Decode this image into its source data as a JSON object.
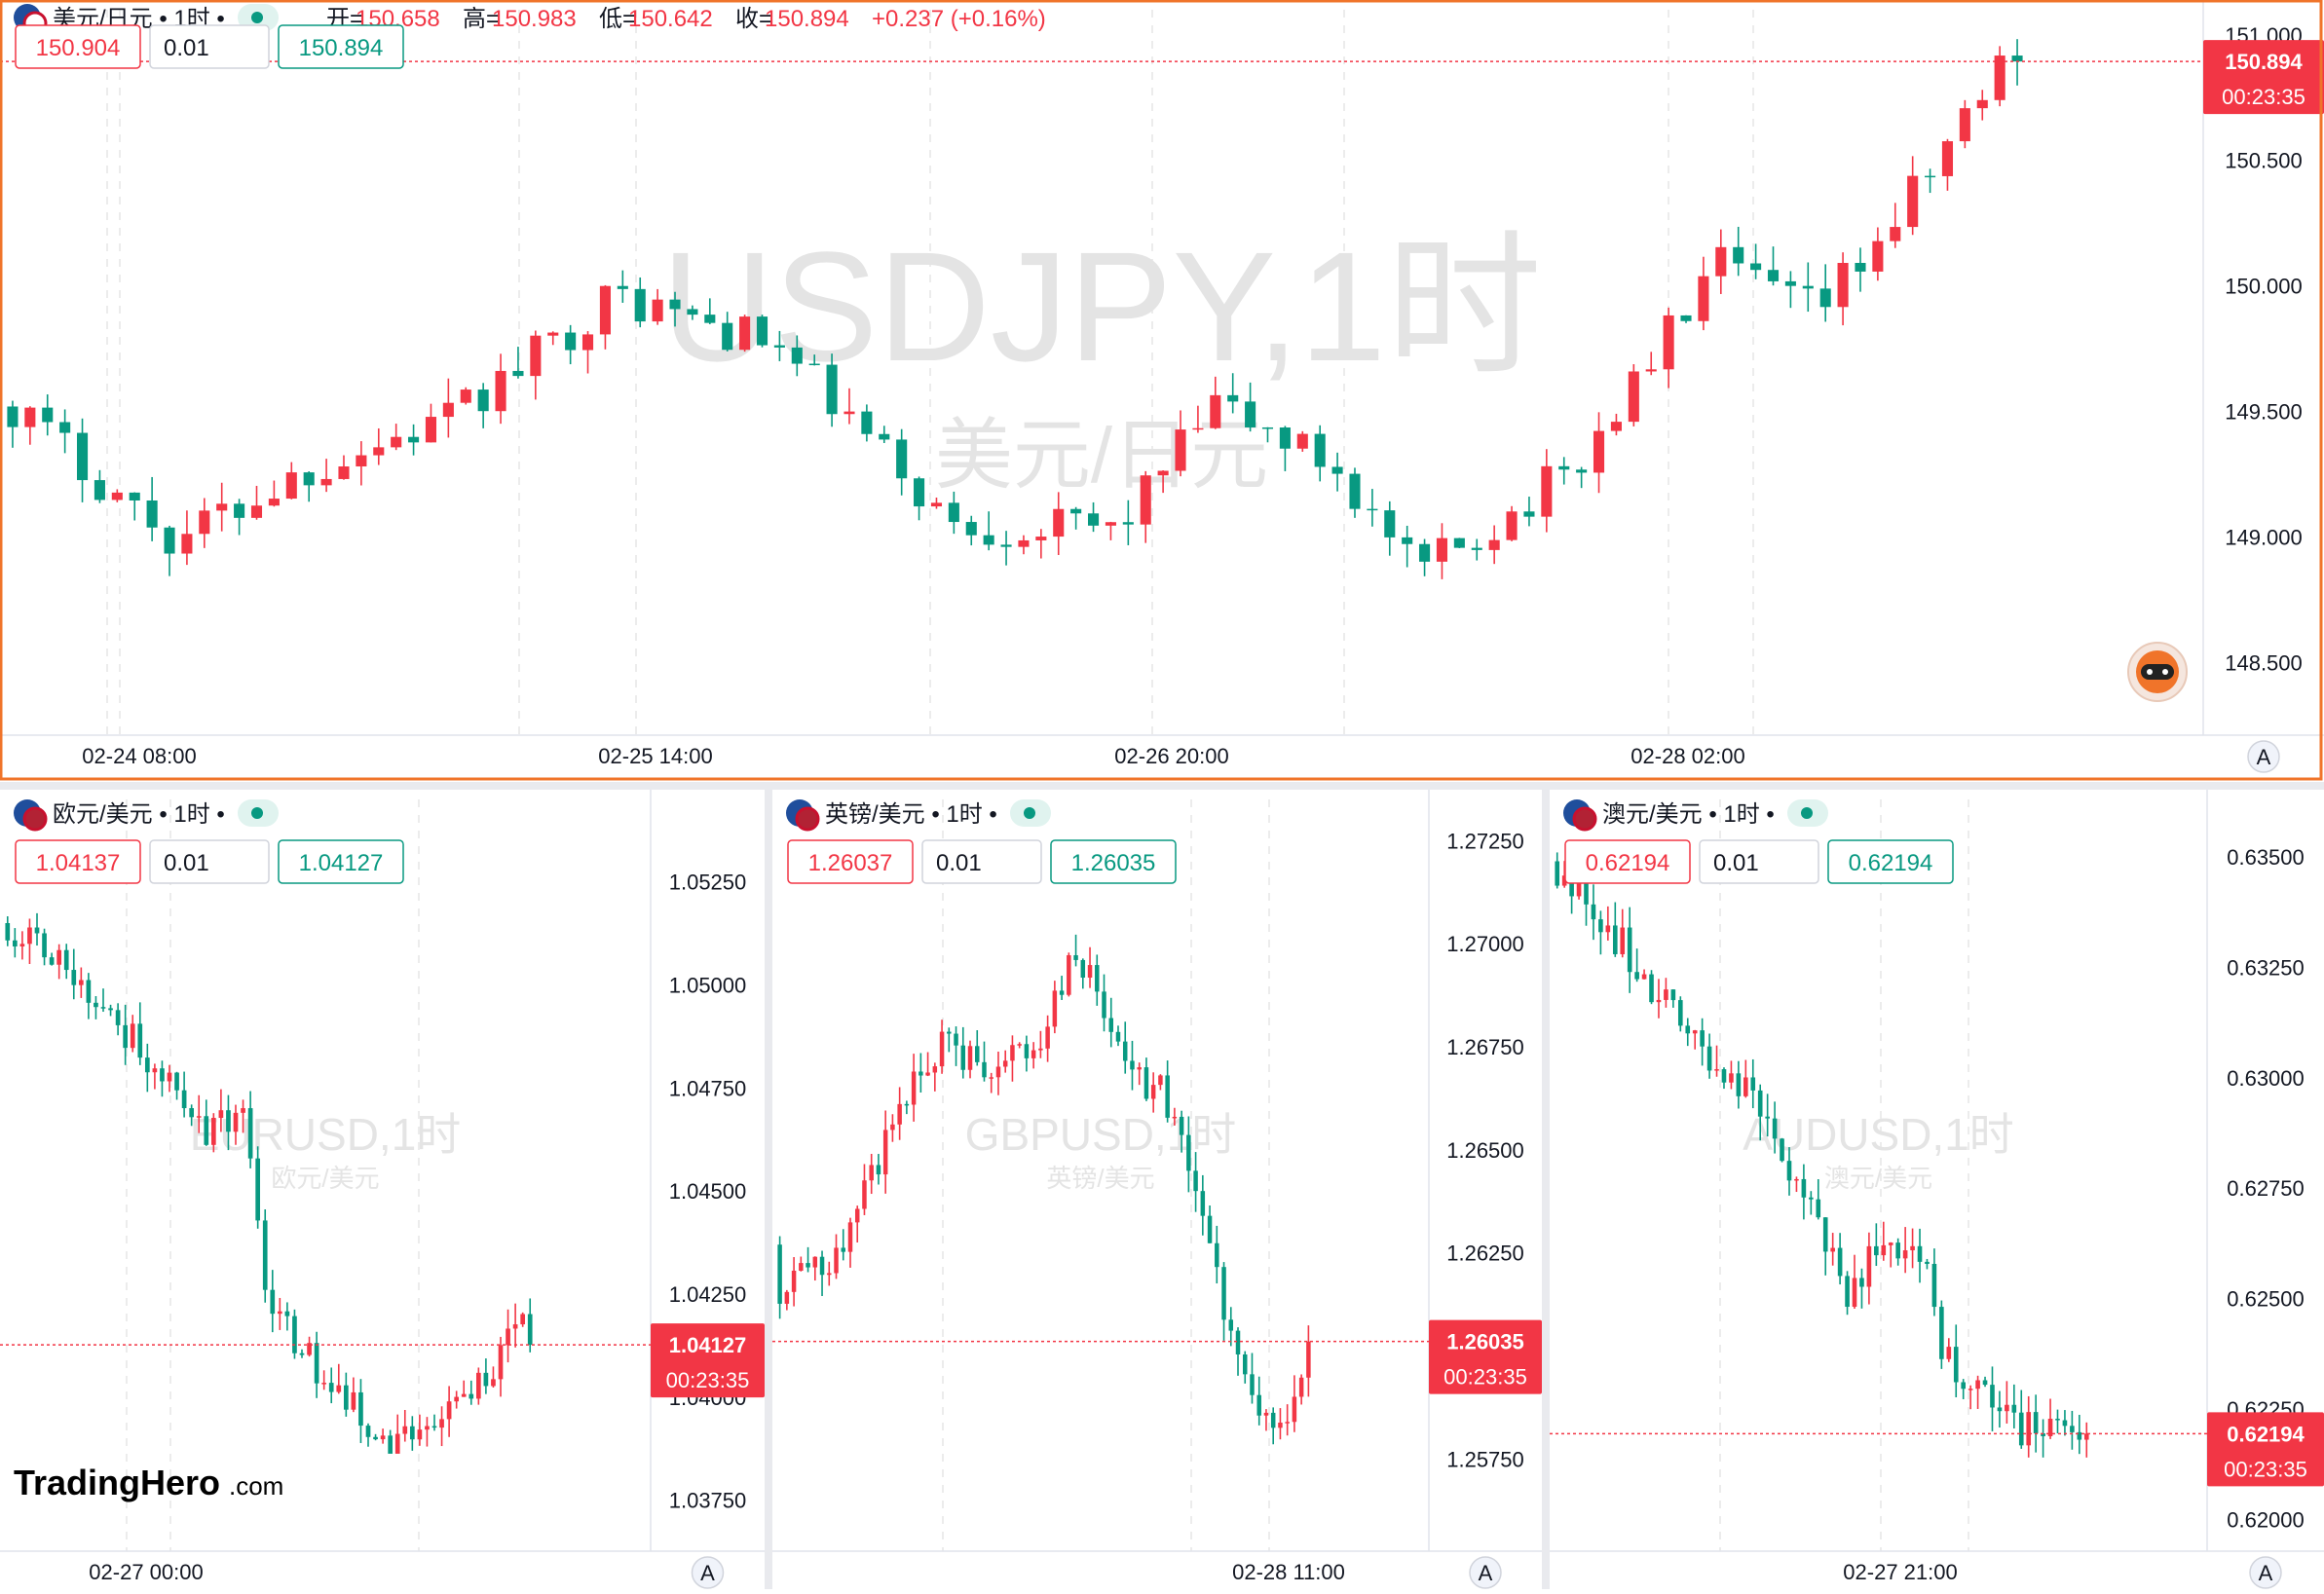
{
  "colors": {
    "up": "#089981",
    "down": "#F23645",
    "accent": "#F0742A",
    "axis_text": "#131722",
    "grid": "#E6E6E6",
    "watermark": "#E4E4E4"
  },
  "panels": [
    {
      "id": "main",
      "flag": "us-jp-flag-icon",
      "title": "美元/日元 • 1时 •",
      "ohlc": [
        {
          "k": "开=",
          "v": "150.658"
        },
        {
          "k": "高=",
          "v": "150.983"
        },
        {
          "k": "低=",
          "v": "150.642"
        },
        {
          "k": "收=",
          "v": "150.894"
        }
      ],
      "change": "+0.237 (+0.16%)",
      "sell": "150.904",
      "qty": "0.01",
      "buy": "150.894",
      "watermark": "USDJPY,1时",
      "watermark_sub": "美元/日元",
      "price_label": "150.894",
      "countdown": "00:23:35",
      "price_ticks": [
        "151.000",
        "150.500",
        "150.000",
        "149.500",
        "149.000",
        "148.500"
      ],
      "time_ticks": [
        "02-24 08:00",
        "02-25 14:00",
        "02-26 20:00",
        "02-28 02:00"
      ],
      "scale_button": "A",
      "chart_data": {
        "type": "candlestick",
        "y_range": [
          148.25,
          151.1
        ],
        "start": 149.52,
        "end": 150.894,
        "low": 148.55,
        "high": 150.983,
        "candles": 116,
        "last_price": 150.894
      }
    },
    {
      "id": "eurusd",
      "flag": "eu-us-flag-icon",
      "title": "欧元/美元 • 1时 •",
      "sell": "1.04137",
      "qty": "0.01",
      "buy": "1.04127",
      "watermark": "EURUSD,1时",
      "watermark_sub": "欧元/美元",
      "price_label": "1.04127",
      "countdown": "00:23:35",
      "price_ticks": [
        "1.05250",
        "1.05000",
        "1.04750",
        "1.04500",
        "1.04250",
        "1.04000",
        "1.03750"
      ],
      "time_ticks": [
        "02-27 00:00"
      ],
      "scale_button": "A",
      "logo": "TradingHero",
      "logo_suffix": ".com",
      "chart_data": {
        "type": "candlestick",
        "y_range": [
          1.0365,
          1.0545
        ],
        "start": 1.0515,
        "end": 1.04127,
        "low": 1.0387,
        "high": 1.0518,
        "candles": 72,
        "last_price": 1.04127
      }
    },
    {
      "id": "gbpusd",
      "flag": "gb-us-flag-icon",
      "title": "英镑/美元 • 1时 •",
      "sell": "1.26037",
      "qty": "0.01",
      "buy": "1.26035",
      "watermark": "GBPUSD,1时",
      "watermark_sub": "英镑/美元",
      "price_label": "1.26035",
      "countdown": "00:23:35",
      "price_ticks": [
        "1.27250",
        "1.27000",
        "1.26750",
        "1.26500",
        "1.26250",
        "1.26000",
        "1.25750"
      ],
      "time_ticks": [
        "02-28 11:00"
      ],
      "scale_button": "A",
      "chart_data": {
        "type": "candlestick",
        "y_range": [
          1.2555,
          1.2735
        ],
        "start": 1.2627,
        "end": 1.26035,
        "low": 1.2574,
        "high": 1.2705,
        "candles": 76,
        "last_price": 1.26035
      }
    },
    {
      "id": "audusd",
      "flag": "au-us-flag-icon",
      "title": "澳元/美元 • 1时 •",
      "sell": "0.62194",
      "qty": "0.01",
      "buy": "0.62194",
      "watermark": "AUDUSD,1时",
      "watermark_sub": "澳元/美元",
      "price_label": "0.62194",
      "countdown": "00:23:35",
      "price_ticks": [
        "0.63500",
        "0.63250",
        "0.63000",
        "0.62750",
        "0.62500",
        "0.62250",
        "0.62000"
      ],
      "time_ticks": [
        "02-27 21:00"
      ],
      "scale_button": "A",
      "chart_data": {
        "type": "candlestick",
        "y_range": [
          0.6195,
          0.6363
        ],
        "start": 0.6349,
        "end": 0.62194,
        "low": 0.6214,
        "high": 0.6351,
        "candles": 74,
        "last_price": 0.62194
      }
    }
  ]
}
